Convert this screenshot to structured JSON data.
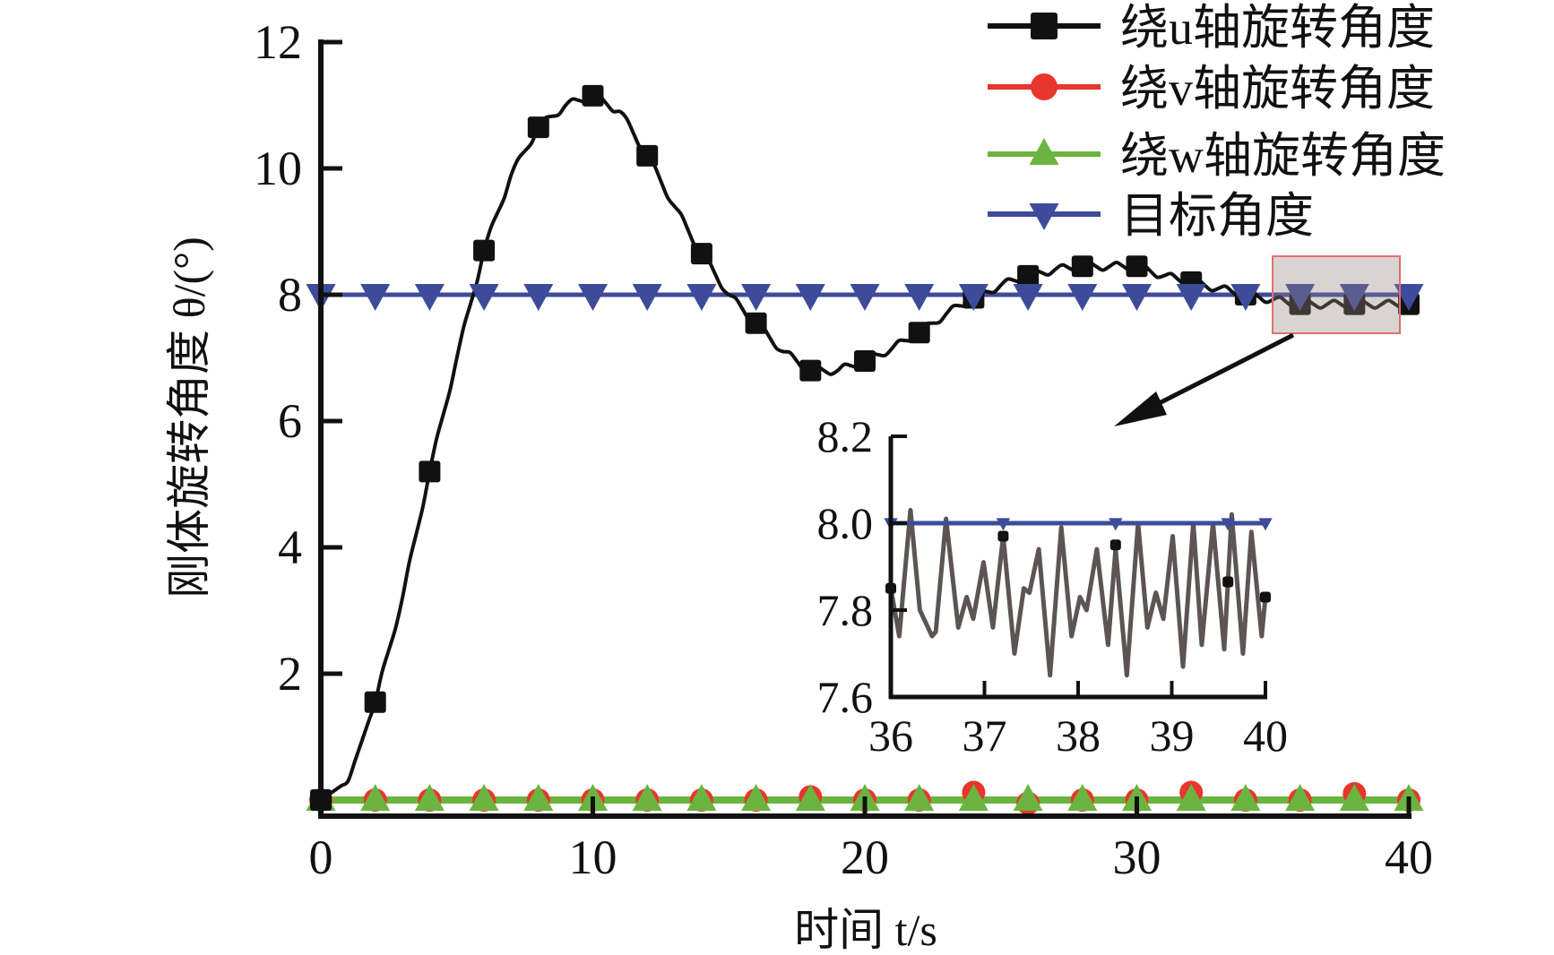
{
  "chart_data": {
    "type": "line",
    "xlabel": "时间 t/s",
    "ylabel": "刚体旋转角度 θ/(°)",
    "xlim": [
      0,
      40
    ],
    "ylim": [
      0,
      12
    ],
    "xticks": [
      "0",
      "10",
      "20",
      "30",
      "40"
    ],
    "yticks": [
      "2",
      "4",
      "6",
      "8",
      "10",
      "12"
    ],
    "grid": false,
    "legend_position": "top-right",
    "colors": {
      "u": "#111111",
      "v": "#e8352d",
      "w": "#6cb43f",
      "target": "#3d4b9a",
      "inset_line": "#5c5553",
      "zoom_box": "#e07070"
    },
    "series": [
      {
        "name": "绕u轴旋转角度",
        "axis_letter": "u",
        "marker": "square",
        "x": [
          0,
          1,
          2,
          3,
          4,
          5,
          6,
          7,
          8,
          9,
          10,
          11,
          12,
          13,
          14,
          15,
          16,
          17,
          18,
          19,
          20,
          21,
          22,
          23,
          24,
          25,
          26,
          27,
          28,
          29,
          30,
          31,
          32,
          33,
          34,
          35,
          36,
          37,
          38,
          39,
          40
        ],
        "values": [
          0,
          0.3,
          1.55,
          3.2,
          5.2,
          7.0,
          8.7,
          9.9,
          10.65,
          11.0,
          11.15,
          10.9,
          10.2,
          9.4,
          8.65,
          8.0,
          7.55,
          7.1,
          6.8,
          6.8,
          6.95,
          7.15,
          7.4,
          7.7,
          7.95,
          8.15,
          8.3,
          8.4,
          8.45,
          8.45,
          8.45,
          8.3,
          8.2,
          8.1,
          8.0,
          7.92,
          7.85,
          7.85,
          7.85,
          7.85,
          7.85
        ],
        "marker_x": [
          0,
          2,
          4,
          6,
          8,
          10,
          12,
          14,
          16,
          18,
          20,
          22,
          24,
          26,
          28,
          30,
          32,
          34,
          36,
          38,
          40
        ],
        "marker_values": [
          0,
          1.55,
          5.2,
          8.7,
          10.65,
          11.15,
          10.2,
          8.65,
          7.55,
          6.8,
          6.95,
          7.4,
          7.95,
          8.3,
          8.45,
          8.45,
          8.2,
          8.0,
          7.85,
          7.85,
          7.85
        ]
      },
      {
        "name": "绕v轴旋转角度",
        "axis_letter": "v",
        "marker": "circle",
        "marker_x": [
          0,
          2,
          4,
          6,
          8,
          10,
          12,
          14,
          16,
          18,
          20,
          22,
          24,
          26,
          28,
          30,
          32,
          34,
          36,
          38,
          40
        ],
        "marker_values": [
          0,
          0,
          0,
          0,
          0,
          0,
          0,
          0,
          0,
          0.05,
          0,
          0,
          0.12,
          -0.05,
          0,
          0,
          0.12,
          0,
          0,
          0.1,
          0
        ]
      },
      {
        "name": "绕w轴旋转角度",
        "axis_letter": "w",
        "marker": "triangle-up",
        "marker_x": [
          0,
          2,
          4,
          6,
          8,
          10,
          12,
          14,
          16,
          18,
          20,
          22,
          24,
          26,
          28,
          30,
          32,
          34,
          36,
          38,
          40
        ],
        "marker_values": [
          0,
          0,
          0,
          0,
          0,
          0,
          0,
          0,
          0,
          0,
          0,
          0,
          0,
          0,
          0,
          0,
          0,
          0,
          0,
          0,
          0
        ]
      },
      {
        "name": "目标角度",
        "marker": "triangle-down",
        "marker_x": [
          0,
          2,
          4,
          6,
          8,
          10,
          12,
          14,
          16,
          18,
          20,
          22,
          24,
          26,
          28,
          30,
          32,
          34,
          36,
          38,
          40
        ],
        "marker_values": [
          8,
          8,
          8,
          8,
          8,
          8,
          8,
          8,
          8,
          8,
          8,
          8,
          8,
          8,
          8,
          8,
          8,
          8,
          8,
          8,
          8
        ]
      }
    ],
    "inset": {
      "xlim": [
        36,
        40
      ],
      "ylim": [
        7.6,
        8.2
      ],
      "xticks": [
        "36",
        "37",
        "38",
        "39",
        "40"
      ],
      "yticks": [
        "7.6",
        "7.8",
        "8.0",
        "8.2"
      ],
      "u_x": [
        36.0,
        36.09,
        36.21,
        36.31,
        36.44,
        36.48,
        36.59,
        36.72,
        36.81,
        36.88,
        36.99,
        37.09,
        37.2,
        37.32,
        37.42,
        37.48,
        37.58,
        37.7,
        37.82,
        37.93,
        38.02,
        38.09,
        38.2,
        38.32,
        38.4,
        38.52,
        38.64,
        38.74,
        38.83,
        38.91,
        39.01,
        39.12,
        39.23,
        39.32,
        39.44,
        39.56,
        39.64,
        39.76,
        39.85,
        39.96,
        40.0
      ],
      "u_values": [
        7.85,
        7.74,
        8.03,
        7.8,
        7.74,
        7.75,
        8.01,
        7.76,
        7.83,
        7.78,
        7.91,
        7.76,
        7.97,
        7.7,
        7.85,
        7.84,
        7.94,
        7.65,
        7.99,
        7.74,
        7.83,
        7.8,
        7.94,
        7.72,
        7.94,
        7.65,
        8.0,
        7.76,
        7.84,
        7.78,
        7.97,
        7.67,
        8.0,
        7.72,
        8.0,
        7.71,
        8.02,
        7.7,
        7.98,
        7.74,
        7.83
      ],
      "u_marker_x": [
        36.0,
        37.2,
        38.4,
        39.6,
        40.0
      ],
      "u_marker_values": [
        7.85,
        7.97,
        7.95,
        7.865,
        7.83
      ],
      "target_marker_x": [
        36.0,
        37.2,
        38.4,
        39.6,
        40.0
      ],
      "target_value": 8.0
    },
    "zoom_region": {
      "xlim": [
        35.3,
        40
      ],
      "ylim": [
        7.6,
        8.2
      ]
    }
  }
}
